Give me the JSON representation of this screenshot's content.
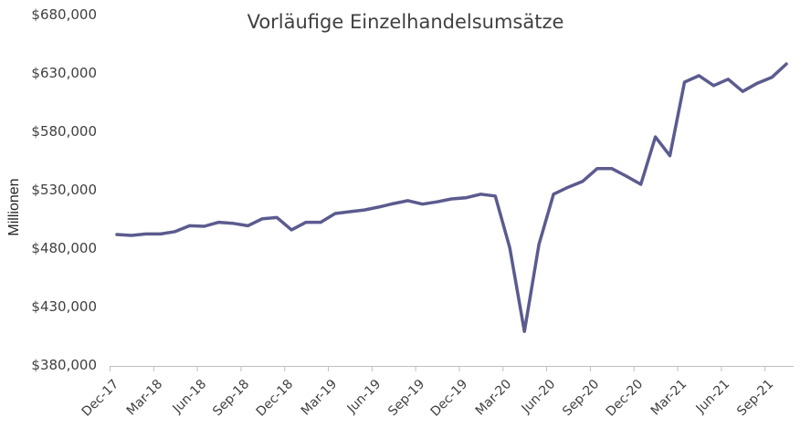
{
  "chart_data": {
    "type": "line",
    "title": "Vorläufige Einzelhandelsumsätze",
    "xlabel": "",
    "ylabel": "Millionen",
    "ylim": [
      380000,
      680000
    ],
    "yticks": [
      "$380,000",
      "$430,000",
      "$480,000",
      "$530,000",
      "$580,000",
      "$630,000",
      "$680,000"
    ],
    "ytick_values": [
      380000,
      430000,
      480000,
      530000,
      580000,
      630000,
      680000
    ],
    "xtick_labels": [
      "Dec-17",
      "Mar-18",
      "Jun-18",
      "Sep-18",
      "Dec-18",
      "Mar-19",
      "Jun-19",
      "Sep-19",
      "Dec-19",
      "Mar-20",
      "Jun-20",
      "Sep-20",
      "Dec-20",
      "Mar-21",
      "Jun-21",
      "Sep-21"
    ],
    "grid": false,
    "legend": "none",
    "line_color": "#5b5b8f",
    "categories": [
      "Dec-17",
      "Jan-18",
      "Feb-18",
      "Mar-18",
      "Apr-18",
      "May-18",
      "Jun-18",
      "Jul-18",
      "Aug-18",
      "Sep-18",
      "Oct-18",
      "Nov-18",
      "Dec-18",
      "Jan-19",
      "Feb-19",
      "Mar-19",
      "Apr-19",
      "May-19",
      "Jun-19",
      "Jul-19",
      "Aug-19",
      "Sep-19",
      "Oct-19",
      "Nov-19",
      "Dec-19",
      "Jan-20",
      "Feb-20",
      "Mar-20",
      "Apr-20",
      "May-20",
      "Jun-20",
      "Jul-20",
      "Aug-20",
      "Sep-20",
      "Oct-20",
      "Nov-20",
      "Dec-20",
      "Jan-21",
      "Feb-21",
      "Mar-21",
      "Apr-21",
      "May-21",
      "Jun-21",
      "Jul-21",
      "Aug-21",
      "Sep-21",
      "Oct-21"
    ],
    "series": [
      {
        "name": "Vorläufige Einzelhandelsumsätze",
        "values": [
          492500,
          491700,
          493000,
          493000,
          495000,
          500000,
          499500,
          503000,
          502000,
          500000,
          506000,
          507000,
          496500,
          503000,
          503000,
          510500,
          512000,
          513500,
          516000,
          519000,
          521500,
          518500,
          520500,
          523000,
          524000,
          527000,
          525500,
          481000,
          409500,
          484000,
          527000,
          533000,
          538000,
          549000,
          549000,
          542500,
          535500,
          576000,
          560000,
          623000,
          628500,
          620000,
          625500,
          615000,
          622000,
          627000,
          638500
        ]
      }
    ]
  }
}
